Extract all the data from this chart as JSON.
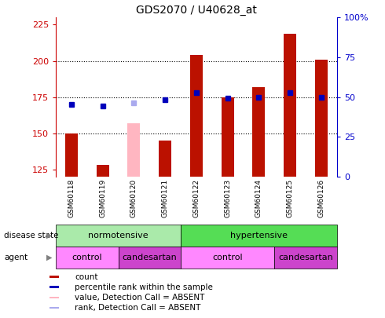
{
  "title": "GDS2070 / U40628_at",
  "samples": [
    "GSM60118",
    "GSM60119",
    "GSM60120",
    "GSM60121",
    "GSM60122",
    "GSM60123",
    "GSM60124",
    "GSM60125",
    "GSM60126"
  ],
  "count_values": [
    150,
    128,
    null,
    145,
    204,
    175,
    182,
    219,
    201
  ],
  "count_absent": [
    null,
    null,
    157,
    null,
    null,
    null,
    null,
    null,
    null
  ],
  "rank_values": [
    170,
    169,
    null,
    173,
    178,
    174,
    175,
    178,
    175
  ],
  "rank_absent": [
    null,
    null,
    171,
    null,
    null,
    null,
    null,
    null,
    null
  ],
  "ylim_left": [
    120,
    230
  ],
  "ylim_right": [
    0,
    100
  ],
  "yticks_left": [
    125,
    150,
    175,
    200,
    225
  ],
  "yticks_right": [
    0,
    25,
    50,
    75,
    100
  ],
  "ytick_labels_right": [
    "0",
    "25",
    "50",
    "75",
    "100%"
  ],
  "disease_state": [
    {
      "label": "normotensive",
      "start": 0,
      "end": 4,
      "color": "#AAEAAA"
    },
    {
      "label": "hypertensive",
      "start": 4,
      "end": 9,
      "color": "#55DD55"
    }
  ],
  "agent": [
    {
      "label": "control",
      "start": 0,
      "end": 2,
      "color": "#FF88FF"
    },
    {
      "label": "candesartan",
      "start": 2,
      "end": 4,
      "color": "#CC44CC"
    },
    {
      "label": "control",
      "start": 4,
      "end": 7,
      "color": "#FF88FF"
    },
    {
      "label": "candesartan",
      "start": 7,
      "end": 9,
      "color": "#CC44CC"
    }
  ],
  "bar_color_normal": "#BB1100",
  "bar_color_absent": "#FFB6C1",
  "dot_color_normal": "#0000BB",
  "dot_color_absent": "#AAAAEE",
  "chart_bg": "#FFFFFF",
  "tick_area_color": "#CCCCCC",
  "left_axis_color": "#CC0000",
  "right_axis_color": "#0000CC"
}
